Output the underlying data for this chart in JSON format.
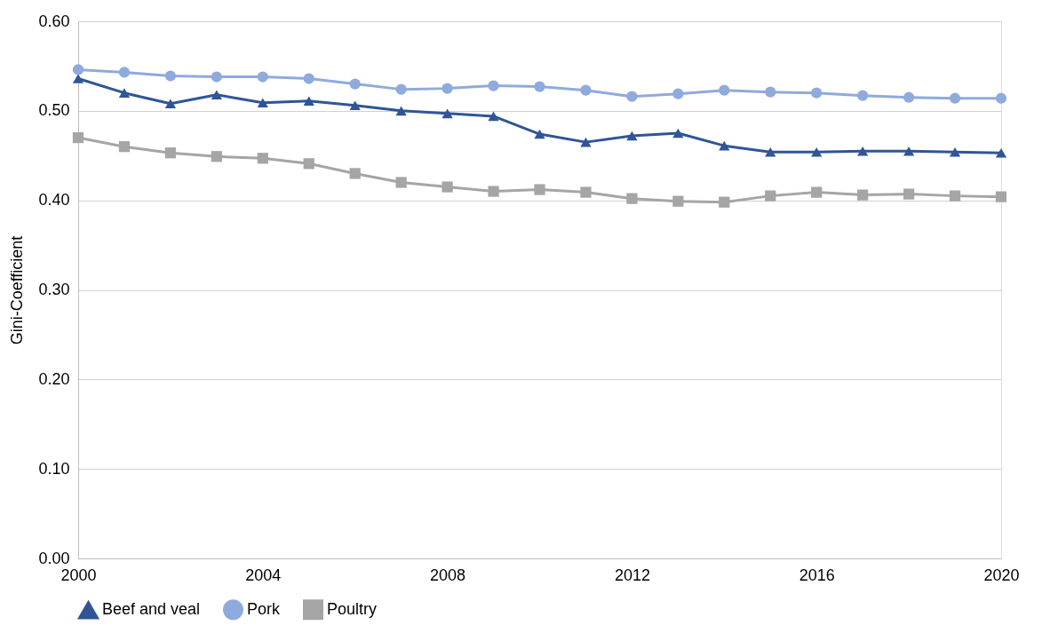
{
  "chart_data": {
    "type": "line",
    "ylabel": "Gini-Coefficient",
    "x": [
      2000,
      2001,
      2002,
      2003,
      2004,
      2005,
      2006,
      2007,
      2008,
      2009,
      2010,
      2011,
      2012,
      2013,
      2014,
      2015,
      2016,
      2017,
      2018,
      2019,
      2020
    ],
    "xlim": [
      2000,
      2020
    ],
    "xticks": [
      2000,
      2004,
      2008,
      2012,
      2016,
      2020
    ],
    "ylim": [
      0,
      0.6
    ],
    "yticks": [
      {
        "value": 0,
        "label": "0.00"
      },
      {
        "value": 0.1,
        "label": "0.10"
      },
      {
        "value": 0.2,
        "label": "0.20"
      },
      {
        "value": 0.3,
        "label": "0.30"
      },
      {
        "value": 0.4,
        "label": "0.40"
      },
      {
        "value": 0.5,
        "label": "0.50"
      },
      {
        "value": 0.6,
        "label": "0.60"
      }
    ],
    "grid": "y",
    "legend": "bottom",
    "line_style": "solid",
    "series": [
      {
        "name": "Beef and veal",
        "color": "#2f5597",
        "marker": "triangle",
        "values": [
          0.536,
          0.52,
          0.508,
          0.518,
          0.509,
          0.511,
          0.506,
          0.5,
          0.497,
          0.494,
          0.474,
          0.465,
          0.472,
          0.475,
          0.461,
          0.454,
          0.454,
          0.455,
          0.455,
          0.454,
          0.453
        ]
      },
      {
        "name": "Pork",
        "color": "#8faadc",
        "marker": "circle",
        "values": [
          0.546,
          0.543,
          0.539,
          0.538,
          0.538,
          0.536,
          0.53,
          0.524,
          0.525,
          0.528,
          0.527,
          0.523,
          0.516,
          0.519,
          0.523,
          0.521,
          0.52,
          0.517,
          0.515,
          0.514,
          0.514
        ]
      },
      {
        "name": "Poultry",
        "color": "#a5a5a5",
        "marker": "square",
        "values": [
          0.47,
          0.46,
          0.453,
          0.449,
          0.447,
          0.441,
          0.43,
          0.42,
          0.415,
          0.41,
          0.412,
          0.409,
          0.402,
          0.399,
          0.398,
          0.405,
          0.409,
          0.406,
          0.407,
          0.405,
          0.404
        ]
      }
    ]
  }
}
